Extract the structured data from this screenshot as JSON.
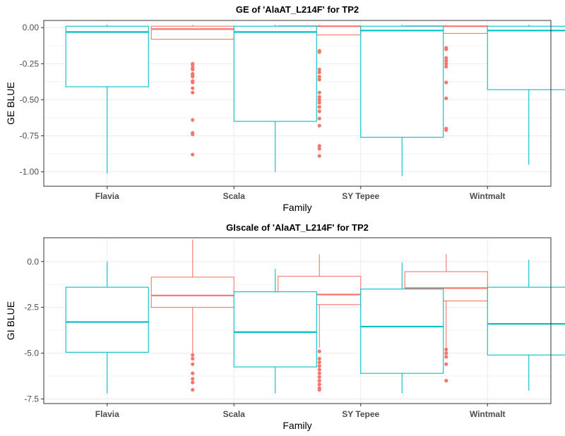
{
  "colors": {
    "group_a": "#F8766D",
    "group_b": "#00BFC4",
    "grid": "#ebebeb",
    "frame": "#333333"
  },
  "chart_data": [
    {
      "type": "box",
      "title": "GE of 'AlaAT_L214F' for TP2",
      "xlabel": "Family",
      "ylabel": "GE BLUE",
      "ylim": [
        -1.1,
        0.05
      ],
      "yticks": [
        0,
        -0.25,
        -0.5,
        -0.75,
        -1
      ],
      "ytick_labels": [
        "0.00",
        "-0.25",
        "-0.50",
        "-0.75",
        "-1.00"
      ],
      "categories": [
        "Flavia",
        "Scala",
        "SY Tepee",
        "Wintmalt"
      ],
      "series": [
        {
          "color": "#F8766D",
          "boxes": [
            null,
            {
              "low": -0.08,
              "q1": -0.08,
              "median": -0.01,
              "q3": 0.01,
              "high": 0.02,
              "outliers": [
                -0.25,
                -0.26,
                -0.28,
                -0.29,
                -0.32,
                -0.33,
                -0.34,
                -0.37,
                -0.38,
                -0.42,
                -0.45,
                -0.64,
                -0.73,
                -0.74,
                -0.88
              ]
            },
            {
              "low": -0.05,
              "q1": -0.05,
              "median": 0.01,
              "q3": 0.01,
              "high": 0.02,
              "outliers": [
                -0.16,
                -0.17,
                -0.29,
                -0.31,
                -0.34,
                -0.36,
                -0.45,
                -0.48,
                -0.5,
                -0.52,
                -0.55,
                -0.58,
                -0.63,
                -0.68,
                -0.82,
                -0.84,
                -0.89
              ]
            },
            {
              "low": -0.04,
              "q1": -0.04,
              "median": 0.01,
              "q3": 0.01,
              "high": 0.02,
              "outliers": [
                -0.14,
                -0.15,
                -0.21,
                -0.23,
                -0.25,
                -0.27,
                -0.38,
                -0.49,
                -0.7,
                -0.71
              ]
            }
          ]
        },
        {
          "color": "#00BFC4",
          "boxes": [
            {
              "low": -1.01,
              "q1": -0.41,
              "median": -0.03,
              "q3": 0.01,
              "high": 0.02,
              "outliers": []
            },
            {
              "low": -1.0,
              "q1": -0.65,
              "median": -0.03,
              "q3": 0.01,
              "high": 0.02,
              "outliers": []
            },
            {
              "low": -1.03,
              "q1": -0.76,
              "median": -0.02,
              "q3": 0.01,
              "high": 0.02,
              "outliers": []
            },
            {
              "low": -0.95,
              "q1": -0.43,
              "median": -0.02,
              "q3": 0.01,
              "high": 0.02,
              "outliers": []
            }
          ]
        }
      ]
    },
    {
      "type": "box",
      "title": "GIscale of 'AlaAT_L214F' for TP2",
      "xlabel": "Family",
      "ylabel": "GI BLUE",
      "ylim": [
        -7.75,
        1.3
      ],
      "yticks": [
        0,
        -2.5,
        -5,
        -7.5
      ],
      "ytick_labels": [
        "0.0",
        "-2.5",
        "-5.0",
        "-7.5"
      ],
      "categories": [
        "Flavia",
        "Scala",
        "SY Tepee",
        "Wintmalt"
      ],
      "series": [
        {
          "color": "#F8766D",
          "boxes": [
            null,
            {
              "low": -5.0,
              "q1": -2.5,
              "median": -1.85,
              "q3": -0.85,
              "high": 1.2,
              "outliers": [
                -5.1,
                -5.3,
                -5.6,
                -6.1,
                -6.4,
                -6.6,
                -7.0
              ]
            },
            {
              "low": -4.7,
              "q1": -2.35,
              "median": -1.8,
              "q3": -0.8,
              "high": 0.4,
              "outliers": [
                -4.9,
                -5.3,
                -5.5,
                -5.7,
                -5.9,
                -6.1,
                -6.3,
                -6.5,
                -6.7,
                -6.9,
                -7.0
              ]
            },
            {
              "low": -4.7,
              "q1": -2.15,
              "median": -1.45,
              "q3": -0.55,
              "high": 0.4,
              "outliers": [
                -4.8,
                -5.0,
                -5.2,
                -5.6,
                -6.5
              ]
            }
          ]
        },
        {
          "color": "#00BFC4",
          "boxes": [
            {
              "low": -7.2,
              "q1": -4.95,
              "median": -3.3,
              "q3": -1.4,
              "high": 0.0,
              "outliers": []
            },
            {
              "low": -7.2,
              "q1": -5.75,
              "median": -3.85,
              "q3": -1.65,
              "high": -0.4,
              "outliers": []
            },
            {
              "low": -7.2,
              "q1": -6.1,
              "median": -3.55,
              "q3": -1.5,
              "high": -0.05,
              "outliers": []
            },
            {
              "low": -7.05,
              "q1": -5.1,
              "median": -3.4,
              "q3": -1.4,
              "high": 0.1,
              "outliers": []
            }
          ]
        }
      ]
    }
  ]
}
